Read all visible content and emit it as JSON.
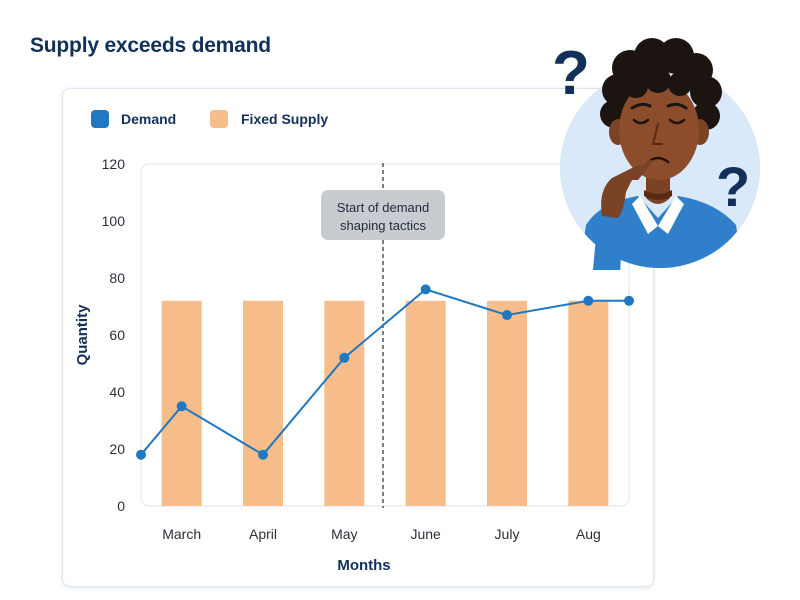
{
  "title": "Supply exceeds demand",
  "colors": {
    "title": "#12305a",
    "demand": "#1f78c1",
    "supply": "#f7bd8a",
    "annotation_bg": "#c8ccd1",
    "illustration_bg": "#d9e9fa"
  },
  "illustration": {
    "name": "confused-person-with-question-marks"
  },
  "chart_data": {
    "type": "bar",
    "categories": [
      "March",
      "April",
      "May",
      "June",
      "July",
      "Aug"
    ],
    "series": [
      {
        "name": "Fixed Supply",
        "type": "bar",
        "values": [
          72,
          72,
          72,
          72,
          72,
          72
        ]
      },
      {
        "name": "Demand",
        "type": "line",
        "x": [
          0,
          0.5,
          1.5,
          2.5,
          3.5,
          4.5,
          5.5,
          6
        ],
        "values": [
          18,
          35,
          18,
          52,
          76,
          67,
          72,
          72
        ]
      }
    ],
    "legend": [
      "Demand",
      "Fixed Supply"
    ],
    "legend_position": "top-left",
    "xlabel": "Months",
    "ylabel": "Quantity",
    "yticks": [
      0,
      20,
      40,
      60,
      80,
      100,
      120
    ],
    "ylim": [
      0,
      120
    ],
    "annotation": {
      "text": [
        "Start of demand",
        "shaping tactics"
      ],
      "x": 3
    },
    "grid": false
  }
}
